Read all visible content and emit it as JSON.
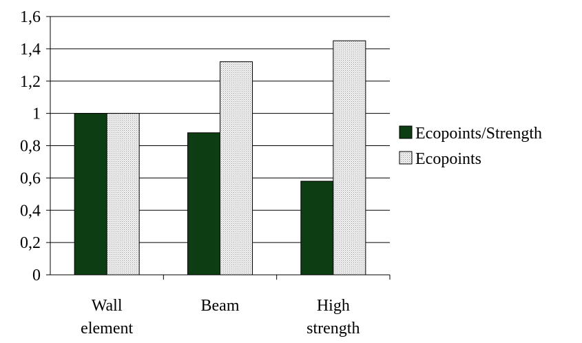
{
  "chart_data": {
    "type": "bar",
    "title": "",
    "xlabel": "",
    "ylabel": "",
    "categories": [
      [
        "Wall",
        "element"
      ],
      [
        "Beam"
      ],
      [
        "High",
        "strength"
      ]
    ],
    "series": [
      {
        "name": "Ecopoints/Strength",
        "values": [
          1.0,
          0.88,
          0.58
        ],
        "color": "#0d3d12",
        "pattern": "solid"
      },
      {
        "name": "Ecopoints",
        "values": [
          1.0,
          1.32,
          1.45
        ],
        "color": "#e6e6e6",
        "pattern": "dotted"
      }
    ],
    "ylim": [
      0,
      1.6
    ],
    "yticks": [
      "0",
      "0,2",
      "0,4",
      "0,6",
      "0,8",
      "1",
      "1,2",
      "1,4",
      "1,6"
    ],
    "grid": true,
    "legend_position": "right"
  }
}
